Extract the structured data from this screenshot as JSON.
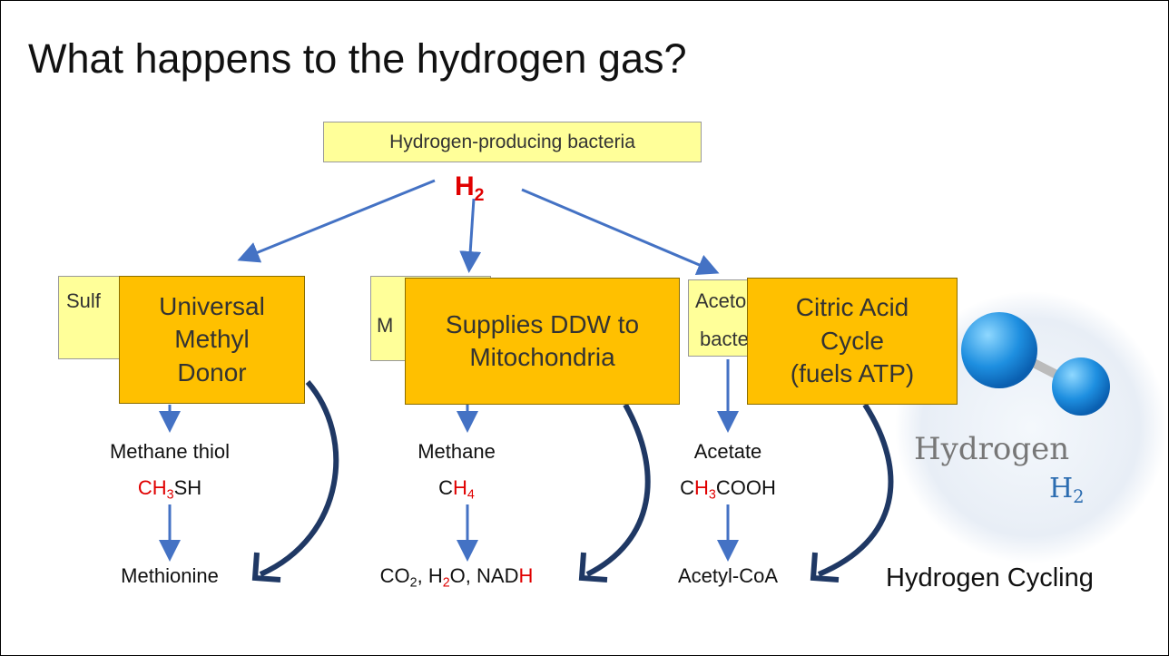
{
  "title": "What happens to the hydrogen  gas?",
  "source": "Hydrogen-producing bacteria",
  "h2": [
    {
      "text": "H",
      "red": true
    },
    {
      "text": "2",
      "sub": true,
      "red": true
    }
  ],
  "hidden_labels": [
    "Sulf",
    "M",
    "Acetog",
    "bacte"
  ],
  "columns": [
    {
      "box": [
        "Universal",
        "Methyl",
        "Donor"
      ],
      "intermediate": "Methane thiol",
      "formula": [
        {
          "text": "CH",
          "red": true
        },
        {
          "text": "3",
          "sub": true,
          "red": true
        },
        {
          "text": "SH"
        }
      ],
      "product": [
        {
          "text": "Methionine"
        }
      ]
    },
    {
      "box": [
        "Supplies DDW to",
        "Mitochondria"
      ],
      "intermediate": "Methane",
      "formula": [
        {
          "text": "C"
        },
        {
          "text": "H",
          "red": true
        },
        {
          "text": "4",
          "sub": true,
          "red": true
        }
      ],
      "product": [
        {
          "text": "CO"
        },
        {
          "text": "2",
          "sub": true
        },
        {
          "text": ", H"
        },
        {
          "text": "2",
          "sub": true,
          "red": true
        },
        {
          "text": "O, NAD"
        },
        {
          "text": "H",
          "red": true
        }
      ]
    },
    {
      "box": [
        "Citric Acid",
        "Cycle",
        "(fuels ATP)"
      ],
      "intermediate": "Acetate",
      "formula": [
        {
          "text": "C"
        },
        {
          "text": "H",
          "red": true
        },
        {
          "text": "3",
          "sub": true,
          "red": true
        },
        {
          "text": "COOH"
        }
      ],
      "product": [
        {
          "text": "Acetyl-CoA"
        }
      ]
    }
  ],
  "molecule": {
    "name": "Hydrogen",
    "formula": [
      {
        "text": "H"
      },
      {
        "text": "2",
        "sub": true
      }
    ]
  },
  "caption": "Hydrogen Cycling"
}
